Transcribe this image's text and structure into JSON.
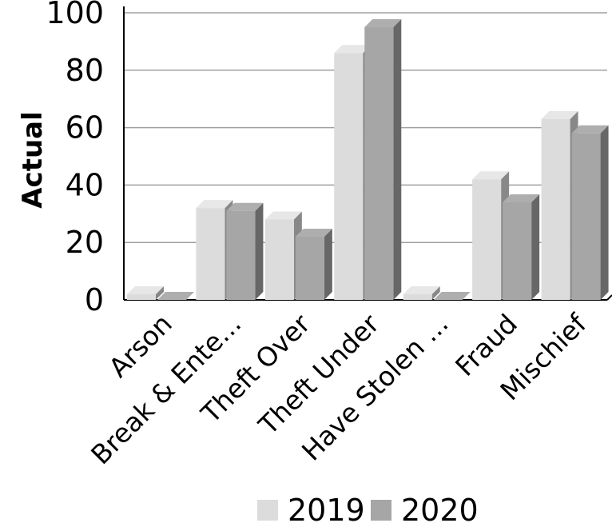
{
  "chart_data": {
    "type": "bar",
    "categories": [
      "Arson",
      "Break & Ente...",
      "Theft Over",
      "Theft Under",
      "Have Stolen ...",
      "Fraud",
      "Mischief"
    ],
    "series": [
      {
        "name": "2019",
        "values": [
          2,
          32,
          28,
          86,
          2,
          42,
          63
        ],
        "color": "#dcdcdc"
      },
      {
        "name": "2020",
        "values": [
          0,
          31,
          22,
          95,
          0,
          34,
          58
        ],
        "color": "#a6a6a6"
      }
    ],
    "ylabel": "Actual",
    "xlabel": "",
    "ylim": [
      0,
      100
    ],
    "yticks": [
      0,
      20,
      40,
      60,
      80,
      100
    ],
    "grid": true,
    "legend": "bottom"
  }
}
